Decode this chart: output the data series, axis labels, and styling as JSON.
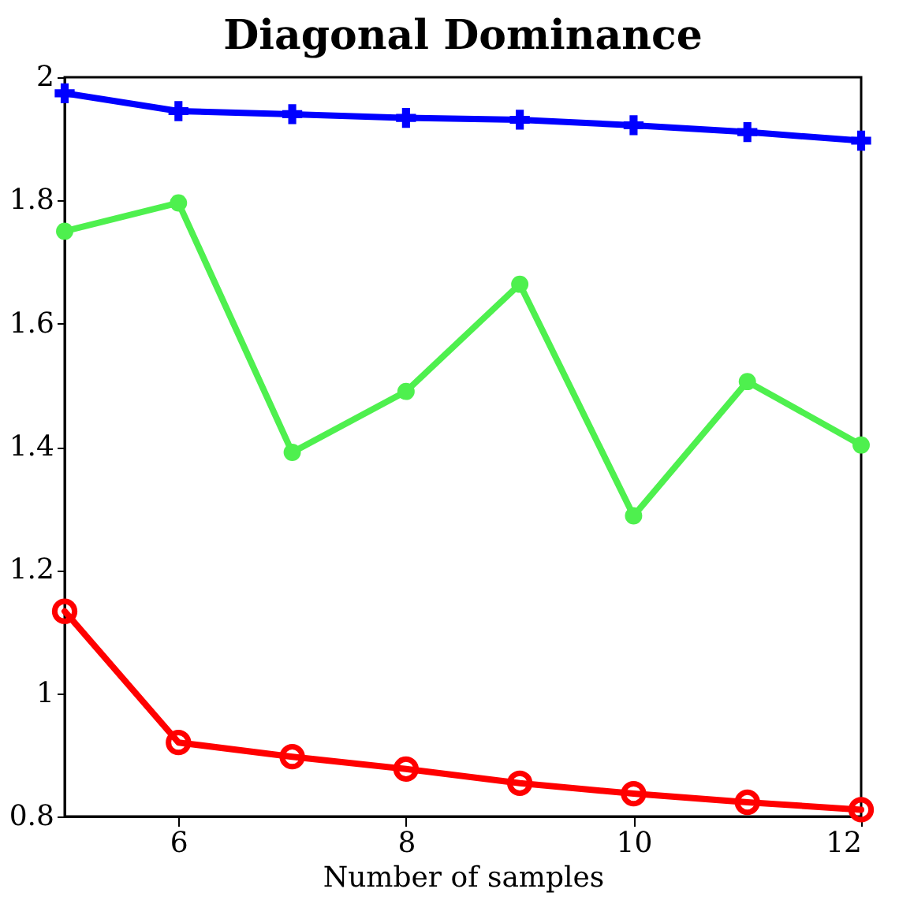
{
  "chart_data": {
    "type": "line",
    "title": "Diagonal Dominance",
    "xlabel": "Number of samples",
    "x": [
      5,
      6,
      7,
      8,
      9,
      10,
      11,
      12
    ],
    "series": [
      {
        "color": "#0000ff",
        "marker": "cross",
        "values": [
          1.974,
          1.945,
          1.94,
          1.934,
          1.931,
          1.922,
          1.911,
          1.897
        ]
      },
      {
        "color": "#4ef04e",
        "marker": "circle",
        "values": [
          1.75,
          1.796,
          1.391,
          1.49,
          1.664,
          1.288,
          1.506,
          1.403
        ]
      },
      {
        "color": "#ff0000",
        "marker": "circle_open",
        "values": [
          1.133,
          0.92,
          0.897,
          0.877,
          0.854,
          0.837,
          0.823,
          0.811
        ]
      }
    ],
    "xlim": [
      5,
      12
    ],
    "xticks": [
      6,
      8,
      10,
      12
    ],
    "ylim": [
      0.8,
      2
    ],
    "yticks": [
      0.8,
      1,
      1.2,
      1.4,
      1.6,
      1.8,
      2
    ],
    "grid": false,
    "line_style": "solid"
  }
}
